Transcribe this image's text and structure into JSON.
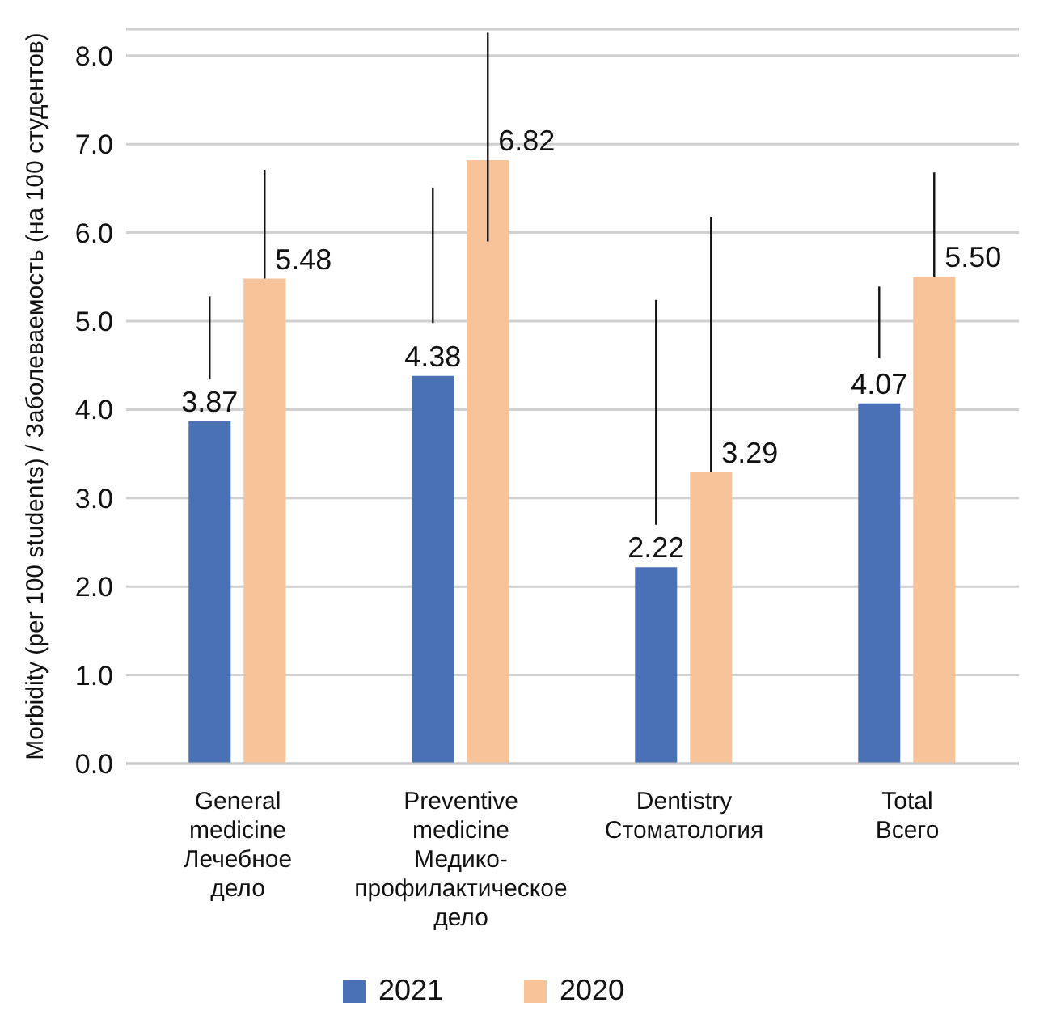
{
  "chart_data": {
    "type": "bar",
    "ylabel": "Morbidity (per 100 students) / Заболеваемость (на 100 студентов)",
    "categories": [
      "General medicine Лечебное дело",
      "Preventive medicine Медико-профилактическое дело",
      "Dentistry Стоматология",
      "Total Всего"
    ],
    "series": [
      {
        "name": "2021",
        "color": "#4a71b5",
        "values": [
          3.87,
          4.38,
          2.22,
          4.07
        ],
        "value_labels": [
          "3.87",
          "4.38",
          "2.22",
          "4.07"
        ],
        "errors": [
          [
            4.34,
            5.28
          ],
          [
            4.98,
            6.51
          ],
          [
            2.7,
            5.24
          ],
          [
            4.58,
            5.39
          ]
        ]
      },
      {
        "name": "2020",
        "color": "#f9c39a",
        "values": [
          5.48,
          6.82,
          3.29,
          5.5
        ],
        "value_labels": [
          "5.48",
          "6.82",
          "3.29",
          "5.50"
        ],
        "errors": [
          [
            5.48,
            6.71
          ],
          [
            5.9,
            8.26
          ],
          [
            3.29,
            6.18
          ],
          [
            5.5,
            6.68
          ]
        ]
      }
    ],
    "ylim": [
      0,
      8.3
    ],
    "yticks": [
      {
        "value": 0,
        "label": "0.0"
      },
      {
        "value": 1,
        "label": "1.0"
      },
      {
        "value": 2,
        "label": "2.0"
      },
      {
        "value": 3,
        "label": "3.0"
      },
      {
        "value": 4,
        "label": "4.0"
      },
      {
        "value": 5,
        "label": "5.0"
      },
      {
        "value": 6,
        "label": "6.0"
      },
      {
        "value": 7,
        "label": "7.0"
      },
      {
        "value": 8,
        "label": "8.0"
      }
    ],
    "grid": "y",
    "legend": "bottom"
  }
}
